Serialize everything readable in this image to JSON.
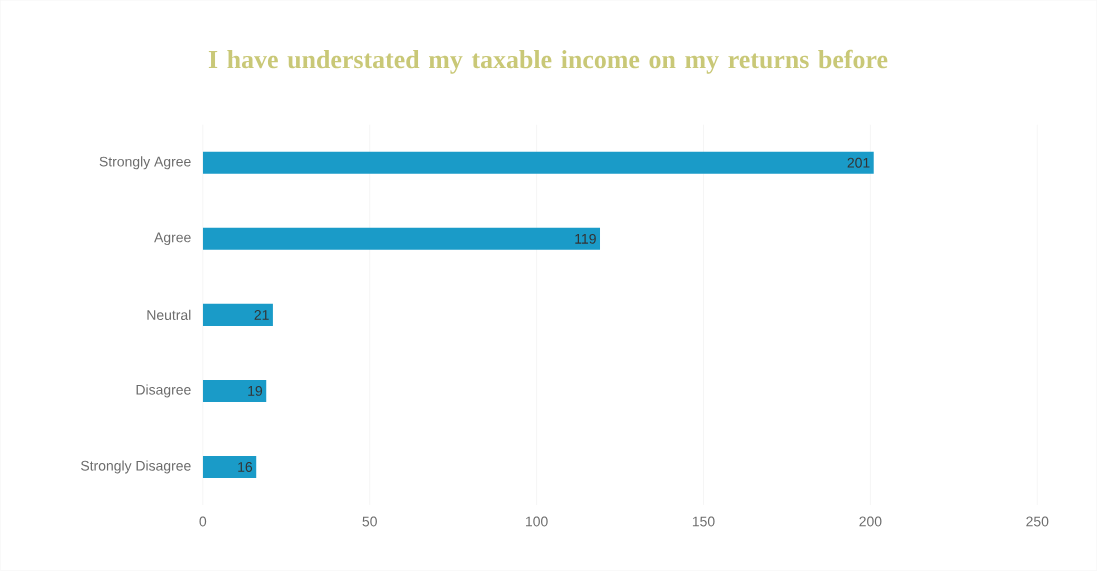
{
  "chart_data": {
    "type": "bar",
    "orientation": "horizontal",
    "title": "I have understated my taxable income on my returns before",
    "categories": [
      "Strongly Agree",
      "Agree",
      "Neutral",
      "Disagree",
      "Strongly Disagree"
    ],
    "values": [
      201,
      119,
      21,
      19,
      16
    ],
    "color": "#1a9bc8",
    "xlim": [
      0,
      250
    ],
    "xticks": [
      0,
      50,
      100,
      150,
      200,
      250
    ],
    "grid": "x",
    "data_labels": true
  }
}
